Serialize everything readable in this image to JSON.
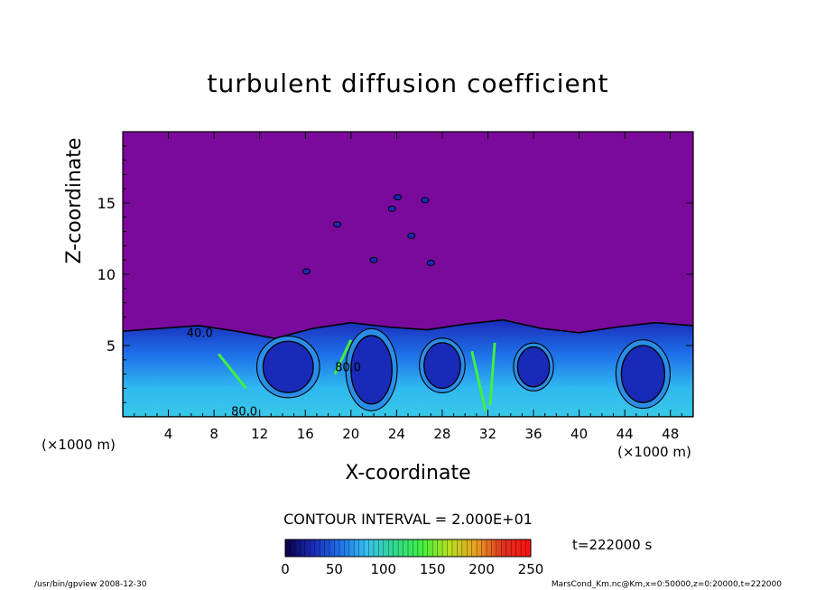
{
  "chart_data": {
    "type": "heatmap",
    "title": "turbulent diffusion coefficient",
    "xlabel": "X-coordinate",
    "ylabel": "Z-coordinate",
    "x_unit_label": "(×1000 m)",
    "z_unit_label": "(×1000 m)",
    "xlim": [
      0,
      50
    ],
    "ylim": [
      0,
      20
    ],
    "x_ticks": [
      4,
      8,
      12,
      16,
      20,
      24,
      28,
      32,
      36,
      40,
      44,
      48
    ],
    "y_ticks": [
      5,
      10,
      15
    ],
    "color_range": [
      0,
      250
    ],
    "colorbar_ticks": [
      0,
      50,
      100,
      150,
      200,
      250
    ],
    "contour_interval_label": "CONTOUR INTERVAL = 2.000E+01",
    "contour_labels": [
      {
        "text": "40.0",
        "x": 5.6,
        "z": 5.6
      },
      {
        "text": "80.0",
        "x": 18.6,
        "z": 3.2
      },
      {
        "text": "80.0",
        "x": 9.5,
        "z": 0.1
      }
    ],
    "boundary_layer_top_km": [
      6.0,
      6.2,
      6.4,
      6.0,
      5.5,
      6.2,
      6.6,
      6.3,
      6.1,
      6.5,
      6.8,
      6.2,
      5.9,
      6.3,
      6.6,
      6.4
    ],
    "cells": [
      {
        "x": 14.5,
        "z": 3.5,
        "rx": 2.2,
        "rz": 1.8
      },
      {
        "x": 21.8,
        "z": 3.3,
        "rx": 1.8,
        "rz": 2.4
      },
      {
        "x": 28.0,
        "z": 3.6,
        "rx": 1.6,
        "rz": 1.6
      },
      {
        "x": 36.0,
        "z": 3.5,
        "rx": 1.4,
        "rz": 1.4
      },
      {
        "x": 45.6,
        "z": 3.0,
        "rx": 1.9,
        "rz": 2.0
      }
    ],
    "colorscale_stops": [
      "#0a0044",
      "#1a2ab8",
      "#1e6fe8",
      "#38c0f0",
      "#30d890",
      "#40f040",
      "#b8e020",
      "#e8a020",
      "#e03020",
      "#ff1010"
    ],
    "background_color": "#7a0a9c"
  },
  "time_label": "t=222000 s",
  "footer": {
    "left": "/usr/bin/gpview   2008-12-30",
    "right": "MarsCond_Km.nc@Km,x=0:50000,z=0:20000,t=222000"
  }
}
